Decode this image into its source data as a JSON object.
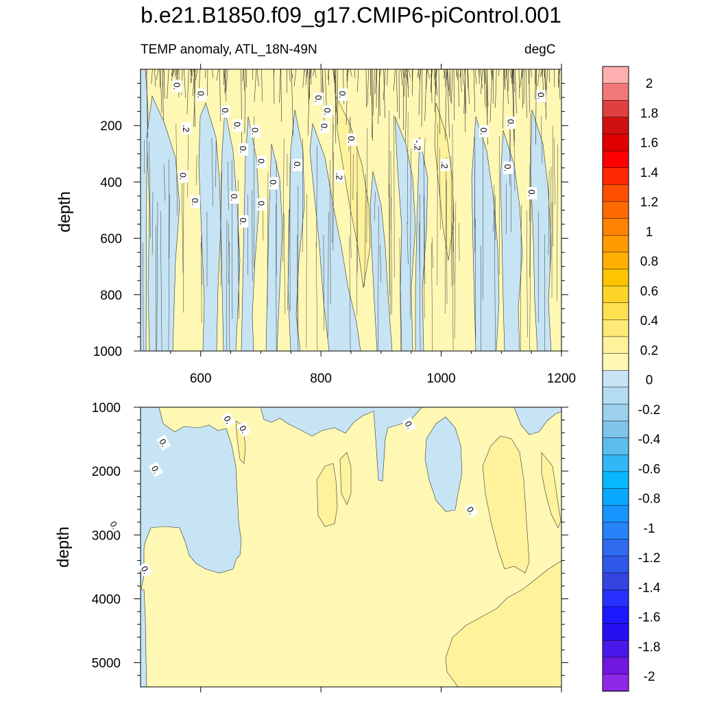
{
  "title": "b.e21.B1850.f09_g17.CMIP6-piControl.001",
  "subtitle_left": "TEMP anomaly, ATL_18N-49N",
  "subtitle_right": "degC",
  "chart_data": [
    {
      "type": "heatmap",
      "panel": "upper",
      "variable": "TEMP anomaly",
      "region": "ATL_18N-49N",
      "units": "degC",
      "xlabel": "",
      "ylabel": "depth",
      "xlim": [
        500,
        1200
      ],
      "ylim": [
        1000,
        0
      ],
      "xticks": [
        600,
        800,
        1000,
        1200
      ],
      "yticks": [
        200,
        400,
        600,
        800,
        1000
      ],
      "contour_labels": [
        "0.",
        "0.",
        "0.",
        ".2",
        "0.",
        "0.",
        "0.",
        "0.",
        "0.",
        "0.",
        "0.",
        "0.",
        "0.",
        "0.",
        "0.",
        "0.",
        "0.",
        "0.",
        "0.",
        ".2",
        "-.2",
        "0.",
        ".2",
        "0.",
        "0.",
        "0.",
        "0.",
        "0."
      ]
    },
    {
      "type": "heatmap",
      "panel": "lower",
      "variable": "TEMP anomaly",
      "units": "degC",
      "xlabel": "",
      "ylabel": "depth",
      "xlim": [
        500,
        1200
      ],
      "ylim": [
        5380,
        1000
      ],
      "yticks": [
        1000,
        2000,
        3000,
        4000,
        5000
      ],
      "contour_labels": [
        "0.",
        "0.",
        "0.",
        "0.",
        "0.",
        "0.",
        "0.",
        "0."
      ]
    }
  ],
  "colorbar": {
    "labels": [
      "2",
      "1.8",
      "1.6",
      "1.4",
      "1.2",
      "1",
      "0.8",
      "0.6",
      "0.4",
      "0.2",
      "0",
      "-0.2",
      "-0.4",
      "-0.6",
      "-0.8",
      "-1",
      "-1.2",
      "-1.4",
      "-1.6",
      "-1.8",
      "-2"
    ],
    "colors": [
      "#ffb0b0",
      "#f07878",
      "#e04040",
      "#d01010",
      "#e00000",
      "#ff0000",
      "#ff2800",
      "#ff5000",
      "#ff6a00",
      "#ff8200",
      "#ff9a00",
      "#ffb000",
      "#ffc400",
      "#ffd428",
      "#ffe050",
      "#ffea78",
      "#fff29c",
      "#fff8b4",
      "#c6e4f4",
      "#b4dcf0",
      "#9cd0ec",
      "#80c4ec",
      "#5cbcee",
      "#30b8f4",
      "#08b8ff",
      "#08a8ff",
      "#1896ff",
      "#2882f8",
      "#306cf0",
      "#3058e8",
      "#3444e0",
      "#2830ff",
      "#1c18ff",
      "#2410f0",
      "#4818e8",
      "#7018e0",
      "#9028e8"
    ]
  }
}
